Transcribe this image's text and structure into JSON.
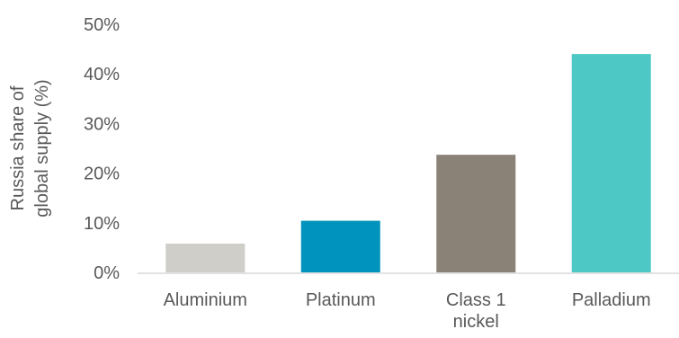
{
  "chart_data": {
    "type": "bar",
    "title": "",
    "xlabel": "",
    "ylabel_lines": [
      "Russia share of",
      "global supply (%)"
    ],
    "categories": [
      {
        "lines": [
          "Aluminium"
        ]
      },
      {
        "lines": [
          "Platinum"
        ]
      },
      {
        "lines": [
          "Class 1",
          "nickel"
        ]
      },
      {
        "lines": [
          "Palladium"
        ]
      }
    ],
    "values": [
      5.8,
      10.4,
      23.7,
      44.0
    ],
    "value_unit": "%",
    "ylim": [
      0,
      50
    ],
    "yticks": [
      0,
      10,
      20,
      30,
      40,
      50
    ],
    "ytick_labels": [
      "0%",
      "10%",
      "20%",
      "30%",
      "40%",
      "50%"
    ],
    "bar_colors": [
      "#d0cec9",
      "#0093bd",
      "#8a8177",
      "#4dc8c4"
    ],
    "grid": false,
    "legend": "none"
  },
  "colors": {
    "axis": "#d9d9d9",
    "text": "#595959"
  }
}
